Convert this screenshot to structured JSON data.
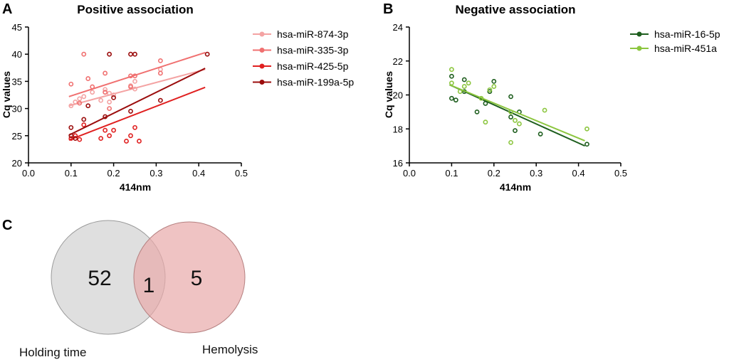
{
  "chart_data": [
    {
      "panel": "A",
      "type": "scatter",
      "title": "Positive association",
      "xlabel": "414nm",
      "ylabel": "Cq values",
      "xlim": [
        0.0,
        0.5
      ],
      "ylim": [
        20,
        45
      ],
      "xticks": [
        "0.0",
        "0.1",
        "0.2",
        "0.3",
        "0.4",
        "0.5"
      ],
      "yticks": [
        "20",
        "25",
        "30",
        "35",
        "40",
        "45"
      ],
      "legend_position": "right",
      "series": [
        {
          "name": "hsa-miR-874-3p",
          "color": "#f4a3a3",
          "x": [
            0.1,
            0.11,
            0.12,
            0.13,
            0.15,
            0.17,
            0.18,
            0.19,
            0.19,
            0.2,
            0.24,
            0.25,
            0.25,
            0.31
          ],
          "y": [
            30.5,
            31.2,
            31.8,
            32.2,
            33.0,
            31.5,
            33.5,
            32.8,
            31.2,
            32.5,
            34.2,
            33.6,
            35.0,
            37.2
          ],
          "fit": [
            [
              0.095,
              30.5
            ],
            [
              0.415,
              37.2
            ]
          ]
        },
        {
          "name": "hsa-miR-335-3p",
          "color": "#f07070",
          "x": [
            0.1,
            0.12,
            0.13,
            0.14,
            0.15,
            0.18,
            0.18,
            0.19,
            0.24,
            0.24,
            0.25,
            0.31,
            0.31
          ],
          "y": [
            34.5,
            31.0,
            40.0,
            35.5,
            34.0,
            36.5,
            33.0,
            30.0,
            36.0,
            34.0,
            36.0,
            38.8,
            36.5
          ],
          "fit": [
            [
              0.095,
              32.2
            ],
            [
              0.415,
              40.3
            ]
          ]
        },
        {
          "name": "hsa-miR-425-5p",
          "color": "#e02020",
          "x": [
            0.1,
            0.11,
            0.12,
            0.13,
            0.17,
            0.18,
            0.19,
            0.2,
            0.23,
            0.24,
            0.25,
            0.26
          ],
          "y": [
            24.5,
            25.0,
            24.3,
            27.0,
            24.5,
            26.0,
            25.0,
            26.0,
            24.0,
            25.0,
            26.5,
            24.0
          ],
          "fit": [
            [
              0.095,
              24.2
            ],
            [
              0.415,
              33.9
            ]
          ]
        },
        {
          "name": "hsa-miR-199a-5p",
          "color": "#9b0d0d",
          "x": [
            0.1,
            0.1,
            0.11,
            0.13,
            0.14,
            0.18,
            0.19,
            0.24,
            0.24,
            0.25,
            0.31,
            0.42,
            0.2
          ],
          "y": [
            25.0,
            26.5,
            24.5,
            28.0,
            30.5,
            28.5,
            40.0,
            29.5,
            40.0,
            40.0,
            31.5,
            40.0,
            32.0
          ],
          "fit": [
            [
              0.095,
              25.1
            ],
            [
              0.415,
              37.4
            ]
          ]
        }
      ]
    },
    {
      "panel": "B",
      "type": "scatter",
      "title": "Negative association",
      "xlabel": "414nm",
      "ylabel": "Cq values",
      "xlim": [
        0.0,
        0.5
      ],
      "ylim": [
        16,
        24
      ],
      "xticks": [
        "0.0",
        "0.1",
        "0.2",
        "0.3",
        "0.4",
        "0.5"
      ],
      "yticks": [
        "16",
        "18",
        "20",
        "22",
        "24"
      ],
      "legend_position": "right",
      "series": [
        {
          "name": "hsa-miR-16-5p",
          "color": "#1e5e1e",
          "x": [
            0.1,
            0.1,
            0.11,
            0.13,
            0.13,
            0.16,
            0.18,
            0.19,
            0.2,
            0.24,
            0.24,
            0.25,
            0.26,
            0.31,
            0.42
          ],
          "y": [
            21.1,
            19.8,
            19.7,
            20.9,
            20.2,
            19.0,
            19.5,
            20.2,
            20.8,
            19.9,
            18.7,
            17.9,
            19.0,
            17.7,
            17.1
          ],
          "fit": [
            [
              0.095,
              20.6
            ],
            [
              0.415,
              17.0
            ]
          ]
        },
        {
          "name": "hsa-miR-451a",
          "color": "#8cc63f",
          "x": [
            0.1,
            0.1,
            0.12,
            0.13,
            0.14,
            0.17,
            0.18,
            0.19,
            0.2,
            0.24,
            0.24,
            0.25,
            0.26,
            0.32,
            0.42
          ],
          "y": [
            21.5,
            20.7,
            20.2,
            20.5,
            20.7,
            19.8,
            18.4,
            20.3,
            20.5,
            19.0,
            17.2,
            18.5,
            18.3,
            19.1,
            18.0
          ],
          "fit": [
            [
              0.095,
              20.6
            ],
            [
              0.415,
              17.3
            ]
          ]
        }
      ]
    },
    {
      "panel": "C",
      "type": "venn",
      "sets": [
        {
          "label": "Holding time",
          "only": "52",
          "color": "#d9d9d9"
        },
        {
          "label": "Hemolysis",
          "only": "5",
          "color": "#e8a9a9"
        }
      ],
      "intersection": "1"
    }
  ]
}
